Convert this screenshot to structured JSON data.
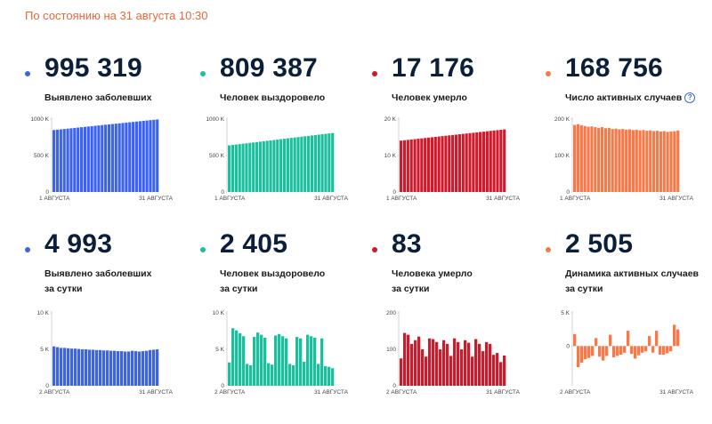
{
  "updated": "По состоянию на 31 августа 10:30",
  "cards": [
    {
      "value": "995 319",
      "label1": "Выявлено заболевших",
      "label2": "",
      "color": "#3c62f2",
      "chart_data": {
        "type": "bar",
        "start": 850000,
        "end": 995319,
        "ticks": [
          "0",
          "500 K",
          "1000 K"
        ],
        "tick_values": [
          0,
          500000,
          1000000
        ],
        "ylim": [
          0,
          1000000
        ],
        "x_start": "1 АВГУСТА",
        "x_end": "31 АВГУСТА"
      }
    },
    {
      "value": "809 387",
      "label1": "Человек выздоровело",
      "label2": "",
      "color": "#1bbf9e",
      "chart_data": {
        "type": "bar",
        "start": 640000,
        "end": 809387,
        "ticks": [
          "0",
          "500 K",
          "1000 K"
        ],
        "tick_values": [
          0,
          500000,
          1000000
        ],
        "ylim": [
          0,
          1000000
        ],
        "x_start": "1 АВГУСТА",
        "x_end": "31 АВГУСТА"
      }
    },
    {
      "value": "17 176",
      "label1": "Человек умерло",
      "label2": "",
      "color": "#d0192b",
      "chart_data": {
        "type": "bar",
        "start": 14100,
        "end": 17176,
        "ticks": [
          "0",
          "10 K",
          "20 K"
        ],
        "tick_values": [
          0,
          10000,
          20000
        ],
        "ylim": [
          0,
          20000
        ],
        "x_start": "1 АВГУСТА",
        "x_end": "31 АВГУСТА"
      }
    },
    {
      "value": "168 756",
      "label1": "Число активных случаев",
      "label2": "",
      "color": "#f47a4a",
      "help": "?",
      "chart_data": {
        "type": "bar",
        "values": [
          184000,
          186000,
          183000,
          181000,
          179000,
          180000,
          178000,
          176000,
          178000,
          175000,
          176000,
          173000,
          174000,
          172000,
          173000,
          171000,
          172000,
          170000,
          171000,
          169000,
          170000,
          168000,
          169000,
          167000,
          168000,
          166000,
          167000,
          165000,
          166000,
          167000,
          168756
        ],
        "ticks": [
          "0",
          "100 K",
          "200 K"
        ],
        "tick_values": [
          0,
          100000,
          200000
        ],
        "ylim": [
          0,
          200000
        ],
        "x_start": "1 АВГУСТА",
        "x_end": "31 АВГУСТА"
      }
    },
    {
      "value": "4 993",
      "label1": "Выявлено заболевших",
      "label2": "за сутки",
      "color": "#3c62f2",
      "chart_data": {
        "type": "bar",
        "values": [
          5400,
          5300,
          5200,
          5200,
          5150,
          5100,
          5100,
          5050,
          5000,
          5000,
          4950,
          4950,
          4900,
          4900,
          4850,
          4850,
          4800,
          4800,
          4750,
          4750,
          4700,
          4700,
          4800,
          4750,
          4700,
          4750,
          4800,
          4900,
          4950,
          4993
        ],
        "ticks": [
          "0",
          "5 K",
          "10 K"
        ],
        "tick_values": [
          0,
          5000,
          10000
        ],
        "ylim": [
          0,
          10000
        ],
        "x_start": "2 АВГУСТА",
        "x_end": "31 АВГУСТА"
      }
    },
    {
      "value": "2 405",
      "label1": "Человек выздоровело",
      "label2": "за сутки",
      "color": "#1bbf9e",
      "chart_data": {
        "type": "bar",
        "values": [
          3200,
          7900,
          7600,
          7200,
          6800,
          3000,
          2800,
          6700,
          7300,
          7000,
          6600,
          3100,
          2900,
          6900,
          7100,
          6800,
          6500,
          3000,
          2800,
          6700,
          6500,
          3300,
          7000,
          6800,
          6600,
          3000,
          6500,
          2700,
          2600,
          2405
        ],
        "ticks": [
          "0",
          "5 K",
          "10 K"
        ],
        "tick_values": [
          0,
          5000,
          10000
        ],
        "ylim": [
          0,
          10000
        ],
        "x_start": "2 АВГУСТА",
        "x_end": "31 АВГУСТА"
      }
    },
    {
      "value": "83",
      "label1": "Человека умерло",
      "label2": "за сутки",
      "color": "#d0192b",
      "chart_data": {
        "type": "bar",
        "values": [
          75,
          145,
          140,
          115,
          125,
          135,
          100,
          80,
          130,
          128,
          120,
          100,
          125,
          115,
          82,
          130,
          120,
          100,
          125,
          118,
          80,
          128,
          115,
          95,
          120,
          115,
          85,
          90,
          65,
          83
        ],
        "ticks": [
          "0",
          "100",
          "200"
        ],
        "tick_values": [
          0,
          100,
          200
        ],
        "ylim": [
          0,
          200
        ],
        "x_start": "2 АВГУСТА",
        "x_end": "31 АВГУСТА"
      }
    },
    {
      "value": "2 505",
      "label1": "Динамика активных случаев",
      "label2": "за сутки",
      "color": "#f47a4a",
      "chart_data": {
        "type": "bar",
        "values": [
          1800,
          -3200,
          -2500,
          -2000,
          -1800,
          -1500,
          1200,
          -1600,
          -2200,
          -1500,
          1700,
          -1700,
          -1500,
          -1300,
          -1000,
          2300,
          -1200,
          -1900,
          -1400,
          -1000,
          -800,
          1500,
          -1000,
          2300,
          -1300,
          -1300,
          -1100,
          -800,
          3200,
          2505
        ],
        "ticks": [
          "0",
          "5 K"
        ],
        "tick_values": [
          0,
          5000
        ],
        "ylim": [
          -6000,
          5000
        ],
        "x_start": "2 АВГУСТА",
        "x_end": "31 АВГУСТА"
      }
    }
  ]
}
